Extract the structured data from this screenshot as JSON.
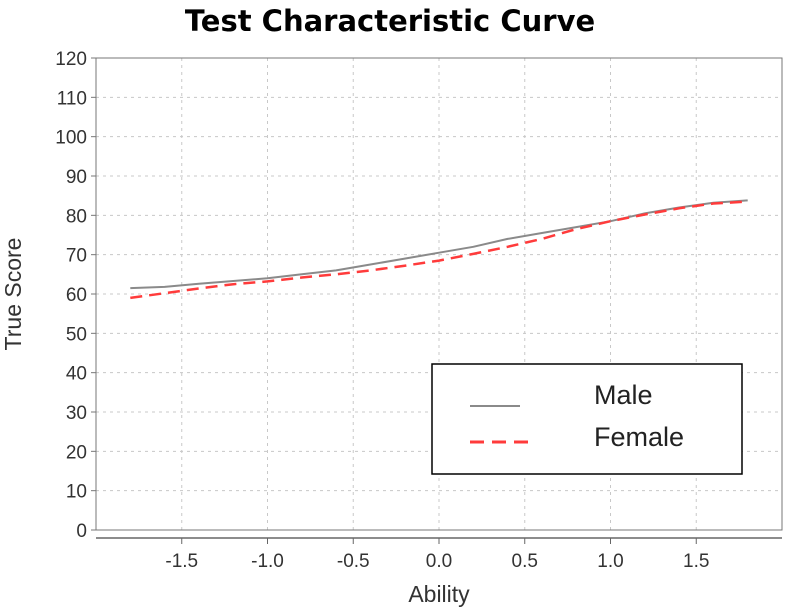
{
  "chart_data": {
    "type": "line",
    "title": "Test Characteristic Curve",
    "xlabel": "Ability",
    "ylabel": "True Score",
    "xlim": [
      -2.0,
      2.0
    ],
    "ylim": [
      0,
      120
    ],
    "x_ticks": [
      -1.5,
      -1.0,
      -0.5,
      0.0,
      0.5,
      1.0,
      1.5
    ],
    "x_tick_labels": [
      "-1.5",
      "-1.0",
      "-0.5",
      "0.0",
      "0.5",
      "1.0",
      "1.5"
    ],
    "y_ticks": [
      0,
      10,
      20,
      30,
      40,
      50,
      60,
      70,
      80,
      90,
      100,
      110,
      120
    ],
    "y_tick_labels": [
      "0",
      "10",
      "20",
      "30",
      "40",
      "50",
      "60",
      "70",
      "80",
      "90",
      "100",
      "110",
      "120"
    ],
    "grid": true,
    "legend_position": "bottom-right",
    "series": [
      {
        "name": "Male",
        "color": "#8a8a8a",
        "style": "solid",
        "x": [
          -1.8,
          -1.6,
          -1.4,
          -1.2,
          -1.0,
          -0.8,
          -0.6,
          -0.4,
          -0.2,
          0.0,
          0.2,
          0.4,
          0.6,
          0.8,
          1.0,
          1.2,
          1.4,
          1.6,
          1.8
        ],
        "y": [
          61.5,
          61.8,
          62.6,
          63.3,
          64.0,
          65.0,
          66.0,
          67.5,
          69.0,
          70.5,
          72.0,
          74.0,
          75.5,
          77.0,
          78.5,
          80.5,
          82.0,
          83.2,
          83.8
        ]
      },
      {
        "name": "Female",
        "color": "#ff3b3b",
        "style": "dashed",
        "x": [
          -1.8,
          -1.6,
          -1.4,
          -1.2,
          -1.0,
          -0.8,
          -0.6,
          -0.4,
          -0.2,
          0.0,
          0.2,
          0.4,
          0.6,
          0.8,
          1.0,
          1.2,
          1.4,
          1.6,
          1.8
        ],
        "y": [
          59.0,
          60.2,
          61.4,
          62.5,
          63.2,
          64.2,
          65.0,
          66.0,
          67.2,
          68.5,
          70.2,
          72.0,
          74.0,
          76.5,
          78.5,
          80.2,
          81.8,
          83.0,
          83.5
        ]
      }
    ]
  }
}
